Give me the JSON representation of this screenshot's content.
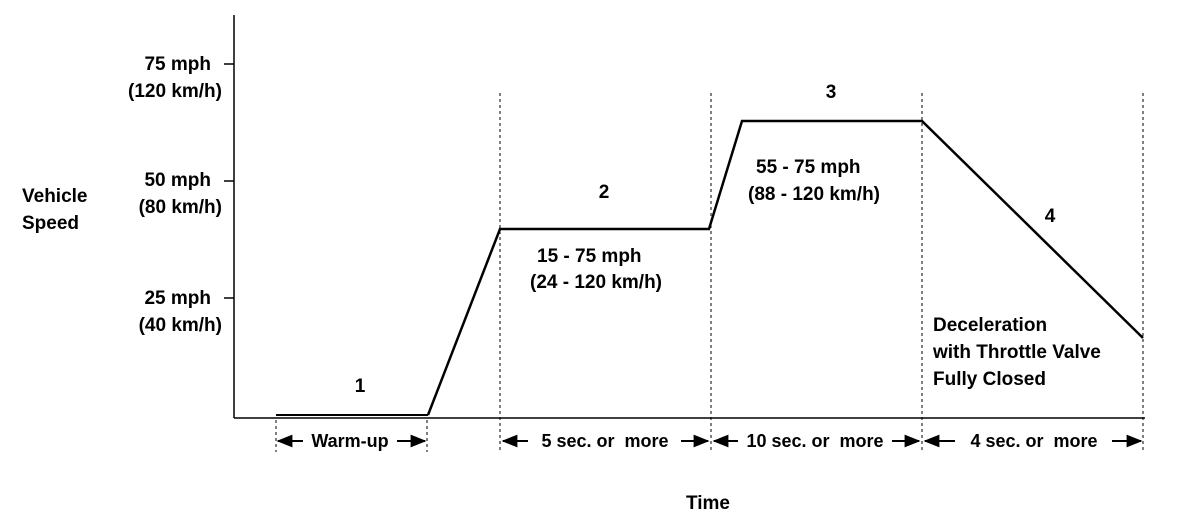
{
  "y_axis": {
    "label_line1": "Vehicle",
    "label_line2": "Speed",
    "ticks": [
      {
        "mph": "75 mph",
        "kmh": "(120 km/h)"
      },
      {
        "mph": "50 mph",
        "kmh": "(80 km/h)"
      },
      {
        "mph": "25 mph",
        "kmh": "(40 km/h)"
      }
    ]
  },
  "x_axis": {
    "label": "Time"
  },
  "phases": [
    {
      "number": "1",
      "duration": "Warm-up"
    },
    {
      "number": "2",
      "duration": "5 sec. or  more",
      "speed_line1": "15 - 75 mph",
      "speed_line2": "(24 - 120 km/h)"
    },
    {
      "number": "3",
      "duration": "10 sec. or  more",
      "speed_line1": "55 - 75 mph",
      "speed_line2": "(88 - 120 km/h)"
    },
    {
      "number": "4",
      "duration": "4 sec. or  more",
      "note_line1": "Deceleration",
      "note_line2": "with Throttle Valve",
      "note_line3": "Fully Closed"
    }
  ]
}
